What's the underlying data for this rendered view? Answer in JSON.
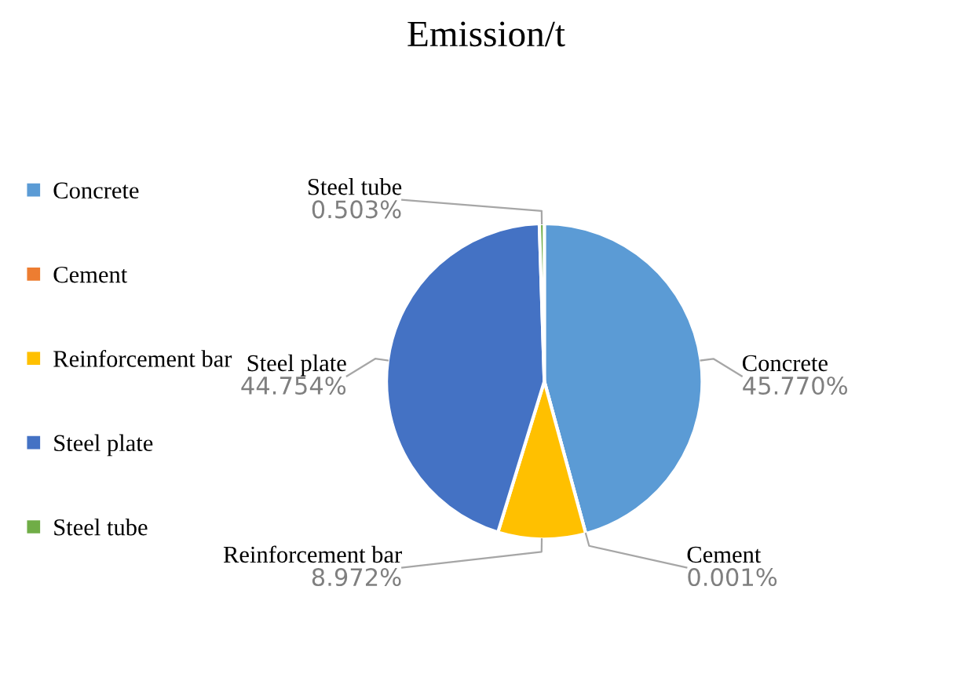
{
  "chart_data": {
    "type": "pie",
    "title": "Emission/t",
    "categories": [
      "Concrete",
      "Cement",
      "Reinforcement bar",
      "Steel plate",
      "Steel tube"
    ],
    "values": [
      45.77,
      0.001,
      8.972,
      44.754,
      0.503
    ],
    "value_labels": [
      "45.770%",
      "0.001%",
      "8.972%",
      "44.754%",
      "0.503%"
    ],
    "colors": [
      "#5b9bd5",
      "#ed7d31",
      "#ffc000",
      "#4472c4",
      "#70ad47"
    ],
    "legend": "left"
  }
}
